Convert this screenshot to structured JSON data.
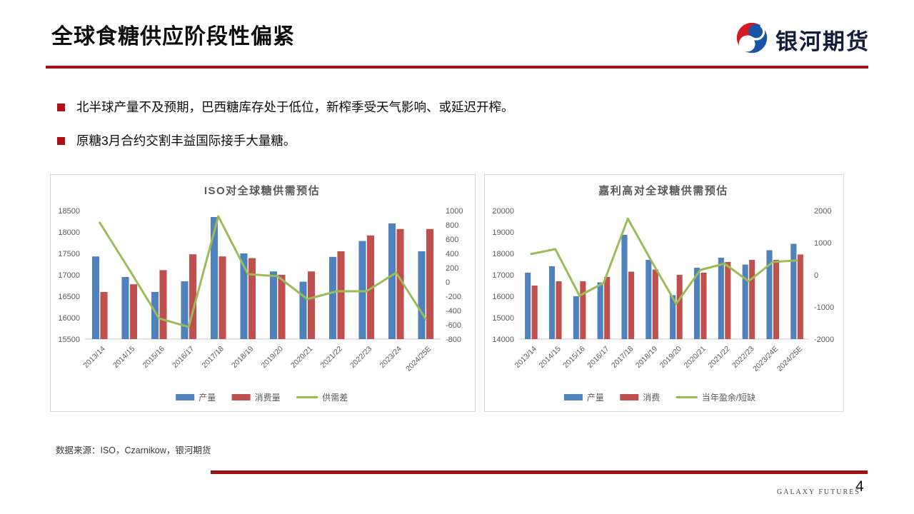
{
  "header": {
    "title": "全球食糖供应阶段性偏紧",
    "logo_text": "银河期货"
  },
  "bullets": [
    {
      "text": "北半球产量不及预期，巴西糖库存处于低位，新榨季受天气影响、或延迟开榨。"
    },
    {
      "text": "原糖3月合约交割丰益国际接手大量糖。"
    }
  ],
  "source_note": "数据来源：ISO，Czarnikow，银河期货",
  "footer": {
    "brand": "GALAXY FUTURES",
    "page_number": "4"
  },
  "colors": {
    "accent_red": "#A31218",
    "bar_blue": "#4F81BD",
    "bar_red": "#C0504D",
    "line_green": "#9BBB59",
    "axis_text": "#595959"
  },
  "chart_data": [
    {
      "type": "bar",
      "combo": "bar+line, dual axis",
      "title": "ISO对全球糖供需预估",
      "categories": [
        "2013/14",
        "2014/15",
        "2015/16",
        "2016/17",
        "2017/18",
        "2018/19",
        "2019/20",
        "2020/21",
        "2021/22",
        "2022/23",
        "2023/24",
        "2024/25E"
      ],
      "left_axis": {
        "min": 15500,
        "max": 18500,
        "step": 500
      },
      "right_axis": {
        "min": -800,
        "max": 1000,
        "step": 200
      },
      "grid": false,
      "legend_position": "bottom",
      "series": [
        {
          "name": "产量",
          "type": "bar",
          "axis": "left",
          "color": "#4F81BD",
          "values": [
            17430,
            16950,
            16600,
            16850,
            18350,
            17500,
            17080,
            16840,
            17420,
            17790,
            18200,
            17550
          ]
        },
        {
          "name": "消费量",
          "type": "bar",
          "axis": "left",
          "color": "#C0504D",
          "values": [
            16600,
            16780,
            17110,
            17480,
            17430,
            17390,
            17000,
            17080,
            17550,
            17920,
            18070,
            18070
          ]
        },
        {
          "name": "供需差",
          "type": "line",
          "axis": "right",
          "color": "#9BBB59",
          "values": [
            830,
            170,
            -510,
            -630,
            920,
            110,
            80,
            -240,
            -130,
            -130,
            130,
            -520
          ]
        }
      ]
    },
    {
      "type": "bar",
      "combo": "bar+line, dual axis",
      "title": "嘉利高对全球糖供需预估",
      "categories": [
        "2013/14",
        "2014/15",
        "2015/16",
        "2016/17",
        "2017/18",
        "2018/19",
        "2019/20",
        "2020/21",
        "2021/22",
        "2022/23",
        "2023/24E",
        "2024/25E"
      ],
      "left_axis": {
        "min": 14000,
        "max": 20000,
        "step": 1000
      },
      "right_axis": {
        "min": -2000,
        "max": 2000,
        "step": 1000
      },
      "grid": false,
      "legend_position": "bottom",
      "series": [
        {
          "name": "产量",
          "type": "bar",
          "axis": "left",
          "color": "#4F81BD",
          "values": [
            17100,
            17400,
            16000,
            16650,
            18870,
            17700,
            16050,
            17330,
            17800,
            17480,
            18150,
            18450
          ]
        },
        {
          "name": "消费",
          "type": "bar",
          "axis": "left",
          "color": "#C0504D",
          "values": [
            16500,
            16700,
            16700,
            16900,
            17150,
            17250,
            17000,
            17100,
            17600,
            17700,
            17700,
            17950
          ]
        },
        {
          "name": "当年盈余/短缺",
          "type": "line",
          "axis": "right",
          "color": "#9BBB59",
          "values": [
            650,
            800,
            -650,
            -250,
            1750,
            400,
            -900,
            150,
            350,
            -200,
            400,
            450
          ]
        }
      ]
    }
  ]
}
